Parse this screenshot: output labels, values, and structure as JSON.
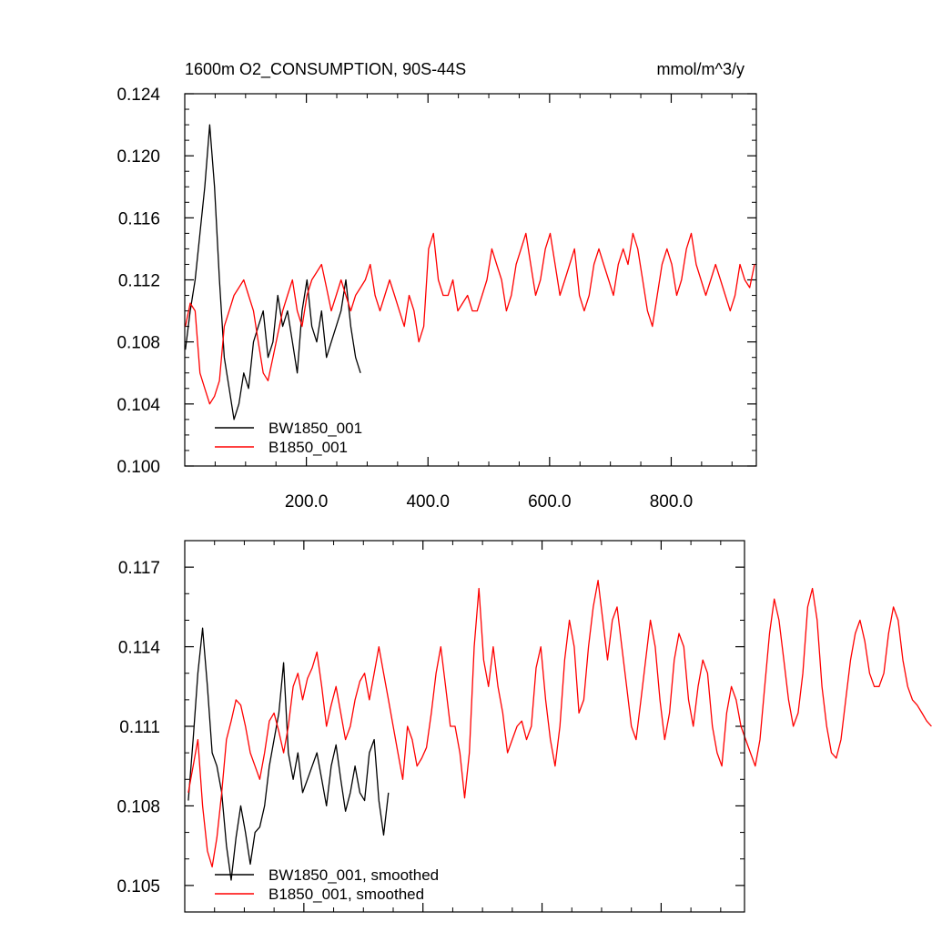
{
  "chart_data": [
    {
      "type": "line",
      "title": "1600m O2_CONSUMPTION, 90S-44S",
      "units": "mmol/m^3/y",
      "xlim": [
        0,
        940
      ],
      "ylim": [
        0.1,
        0.124
      ],
      "x_ticks": [
        200,
        400,
        600,
        800
      ],
      "x_tick_labels": [
        "200.0",
        "400.0",
        "600.0",
        "800.0"
      ],
      "y_ticks": [
        0.1,
        0.104,
        0.108,
        0.112,
        0.116,
        0.12,
        0.124
      ],
      "y_tick_labels": [
        "0.100",
        "0.104",
        "0.108",
        "0.112",
        "0.116",
        "0.120",
        "0.124"
      ],
      "grid": false,
      "legend": "bottom-left",
      "series": [
        {
          "name": "BW1850_001",
          "color": "#000000",
          "x_start": 1,
          "x_step": 8,
          "values": [
            0.1075,
            0.11,
            0.112,
            0.115,
            0.118,
            0.122,
            0.118,
            0.112,
            0.107,
            0.105,
            0.103,
            0.104,
            0.106,
            0.105,
            0.108,
            0.109,
            0.11,
            0.107,
            0.108,
            0.111,
            0.109,
            0.11,
            0.108,
            0.106,
            0.11,
            0.112,
            0.109,
            0.108,
            0.11,
            0.107,
            0.108,
            0.109,
            0.11,
            0.112,
            0.109,
            0.107,
            0.106
          ]
        },
        {
          "name": "B1850_001",
          "color": "#ff0000",
          "x_start": 1,
          "x_step": 8,
          "values": [
            0.109,
            0.1105,
            0.11,
            0.106,
            0.105,
            0.104,
            0.1045,
            0.1055,
            0.109,
            0.11,
            0.111,
            0.1115,
            0.112,
            0.111,
            0.11,
            0.108,
            0.106,
            0.1055,
            0.107,
            0.1085,
            0.11,
            0.111,
            0.112,
            0.11,
            0.109,
            0.111,
            0.112,
            0.1125,
            0.113,
            0.1115,
            0.11,
            0.111,
            0.112,
            0.111,
            0.11,
            0.111,
            0.1115,
            0.112,
            0.113,
            0.111,
            0.11,
            0.111,
            0.112,
            0.111,
            0.11,
            0.109,
            0.111,
            0.11,
            0.108,
            0.109,
            0.114,
            0.115,
            0.112,
            0.111,
            0.111,
            0.112,
            0.11,
            0.1105,
            0.111,
            0.11,
            0.11,
            0.111,
            0.112,
            0.114,
            0.113,
            0.112,
            0.11,
            0.111,
            0.113,
            0.114,
            0.115,
            0.113,
            0.111,
            0.112,
            0.114,
            0.115,
            0.113,
            0.111,
            0.112,
            0.113,
            0.114,
            0.111,
            0.11,
            0.111,
            0.113,
            0.114,
            0.113,
            0.112,
            0.111,
            0.113,
            0.114,
            0.113,
            0.115,
            0.114,
            0.112,
            0.11,
            0.109,
            0.111,
            0.113,
            0.114,
            0.113,
            0.111,
            0.112,
            0.114,
            0.115,
            0.113,
            0.112,
            0.111,
            0.112,
            0.113,
            0.112,
            0.111,
            0.11,
            0.111,
            0.113,
            0.112,
            0.1115,
            0.113
          ]
        }
      ]
    },
    {
      "type": "line",
      "xlim": [
        0,
        940
      ],
      "ylim": [
        0.104,
        0.118
      ],
      "x_ticks": [
        200,
        400,
        600,
        800
      ],
      "y_ticks": [
        0.105,
        0.108,
        0.111,
        0.114,
        0.117
      ],
      "y_tick_labels": [
        "0.105",
        "0.108",
        "0.111",
        "0.114",
        "0.117"
      ],
      "grid": false,
      "legend": "bottom-left",
      "series": [
        {
          "name": "BW1850_001, smoothed",
          "color": "#000000",
          "x_start": 6,
          "x_step": 8,
          "values": [
            0.1082,
            0.1105,
            0.113,
            0.1147,
            0.1125,
            0.11,
            0.1095,
            0.1085,
            0.1065,
            0.1052,
            0.1068,
            0.108,
            0.107,
            0.1058,
            0.107,
            0.1072,
            0.108,
            0.1095,
            0.1105,
            0.1115,
            0.1134,
            0.11,
            0.109,
            0.11,
            0.1085,
            0.109,
            0.1095,
            0.11,
            0.109,
            0.108,
            0.1095,
            0.1103,
            0.109,
            0.1078,
            0.1085,
            0.1095,
            0.1085,
            0.1082,
            0.11,
            0.1105,
            0.1082,
            0.1069,
            0.1085
          ]
        },
        {
          "name": "B1850_001, smoothed",
          "color": "#ff0000",
          "x_start": 6,
          "x_step": 8,
          "values": [
            0.1085,
            0.1095,
            0.1105,
            0.108,
            0.1063,
            0.1057,
            0.1068,
            0.1085,
            0.1105,
            0.1112,
            0.112,
            0.1118,
            0.111,
            0.11,
            0.1095,
            0.109,
            0.11,
            0.1112,
            0.1115,
            0.1108,
            0.11,
            0.111,
            0.1125,
            0.113,
            0.112,
            0.1128,
            0.1132,
            0.1138,
            0.1125,
            0.111,
            0.1118,
            0.1125,
            0.1115,
            0.1105,
            0.111,
            0.112,
            0.1127,
            0.113,
            0.112,
            0.113,
            0.114,
            0.113,
            0.112,
            0.111,
            0.11,
            0.109,
            0.111,
            0.1105,
            0.1095,
            0.1098,
            0.1102,
            0.1115,
            0.113,
            0.114,
            0.1125,
            0.111,
            0.111,
            0.11,
            0.1083,
            0.11,
            0.114,
            0.1162,
            0.1135,
            0.1125,
            0.114,
            0.1125,
            0.1115,
            0.11,
            0.1105,
            0.111,
            0.1112,
            0.1105,
            0.111,
            0.1132,
            0.114,
            0.112,
            0.1105,
            0.1095,
            0.111,
            0.1135,
            0.115,
            0.114,
            0.1115,
            0.112,
            0.114,
            0.1155,
            0.1165,
            0.115,
            0.1135,
            0.115,
            0.1155,
            0.114,
            0.1125,
            0.111,
            0.1105,
            0.112,
            0.1135,
            0.115,
            0.114,
            0.112,
            0.1105,
            0.1115,
            0.1135,
            0.1145,
            0.114,
            0.112,
            0.111,
            0.1125,
            0.1135,
            0.113,
            0.111,
            0.11,
            0.1095,
            0.1115,
            0.1125,
            0.112,
            0.111,
            0.1105,
            0.11,
            0.1095,
            0.1105,
            0.1125,
            0.1145,
            0.1158,
            0.115,
            0.1135,
            0.112,
            0.111,
            0.1115,
            0.113,
            0.1155,
            0.1162,
            0.115,
            0.1125,
            0.111,
            0.11,
            0.1098,
            0.1105,
            0.112,
            0.1135,
            0.1145,
            0.115,
            0.1142,
            0.113,
            0.1125,
            0.1125,
            0.113,
            0.1145,
            0.1155,
            0.115,
            0.1135,
            0.1125,
            0.112,
            0.1118,
            0.1115,
            0.1112,
            0.111
          ]
        }
      ]
    }
  ]
}
